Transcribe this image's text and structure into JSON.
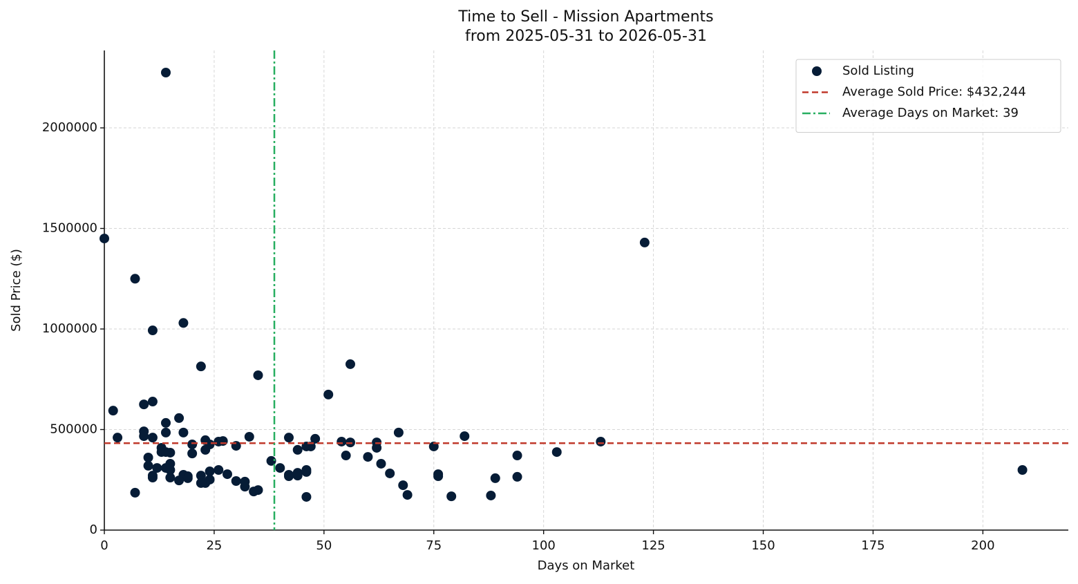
{
  "chart_data": {
    "type": "scatter",
    "title": "Time to Sell - Mission Apartments",
    "subtitle": "from 2025-05-31 to 2026-05-31",
    "x_label": "Days on Market",
    "y_label": "Sold Price ($)",
    "xlim": [
      0,
      219.45
    ],
    "ylim": [
      0,
      2385000
    ],
    "xticks": [
      0,
      25,
      50,
      75,
      100,
      125,
      150,
      175,
      200
    ],
    "yticks": [
      0,
      500000,
      1000000,
      1500000,
      2000000
    ],
    "grid": true,
    "legend": "upper right",
    "series": [
      {
        "name": "Sold Listing",
        "color": "#061c36",
        "x": [
          14,
          0,
          123,
          7,
          18,
          11,
          22,
          56,
          35,
          51,
          2,
          9,
          11,
          17,
          14,
          3,
          9,
          9,
          11,
          14,
          18,
          23,
          20,
          26,
          27,
          24,
          30,
          33,
          13,
          13,
          15,
          14,
          23,
          20,
          10,
          10,
          12,
          15,
          14,
          15,
          11,
          11,
          15,
          18,
          19,
          19,
          17,
          22,
          24,
          26,
          28,
          22,
          23,
          24,
          30,
          32,
          32,
          34,
          35,
          7,
          38,
          40,
          42,
          44,
          46,
          47,
          48,
          42,
          42,
          44,
          44,
          46,
          46,
          46,
          54,
          56,
          55,
          60,
          62,
          62,
          63,
          65,
          67,
          68,
          69,
          75,
          76,
          76,
          79,
          82,
          88,
          89,
          94,
          94,
          103,
          113,
          209
        ],
        "values": [
          2275000,
          1450000,
          1430000,
          1250000,
          1030000,
          993000,
          814000,
          825000,
          770000,
          674000,
          594000,
          625000,
          639000,
          557000,
          533000,
          460000,
          491000,
          467000,
          460000,
          485000,
          485000,
          447000,
          426000,
          440000,
          443000,
          426000,
          419000,
          464000,
          409000,
          388000,
          385000,
          388000,
          399000,
          381000,
          361000,
          320000,
          309000,
          330000,
          309000,
          299000,
          271000,
          261000,
          261000,
          275000,
          268000,
          258000,
          247000,
          271000,
          292000,
          299000,
          278000,
          234000,
          234000,
          251000,
          244000,
          241000,
          216000,
          192000,
          199000,
          186000,
          344000,
          309000,
          460000,
          399000,
          416000,
          416000,
          454000,
          275000,
          268000,
          285000,
          271000,
          299000,
          289000,
          165000,
          440000,
          436000,
          371000,
          364000,
          436000,
          409000,
          330000,
          282000,
          485000,
          223000,
          175000,
          416000,
          278000,
          268000,
          168000,
          467000,
          172000,
          258000,
          371000,
          265000,
          388000,
          440000,
          299000
        ]
      }
    ],
    "reference_lines": [
      {
        "name": "Average Sold Price: $432,244",
        "axis": "y",
        "value": 432244,
        "color": "#c0392b",
        "dash": "dashed"
      },
      {
        "name": "Average Days on Market: 39",
        "axis": "x",
        "value": 38.7,
        "color": "#27ae60",
        "dash": "dashdot"
      }
    ]
  }
}
